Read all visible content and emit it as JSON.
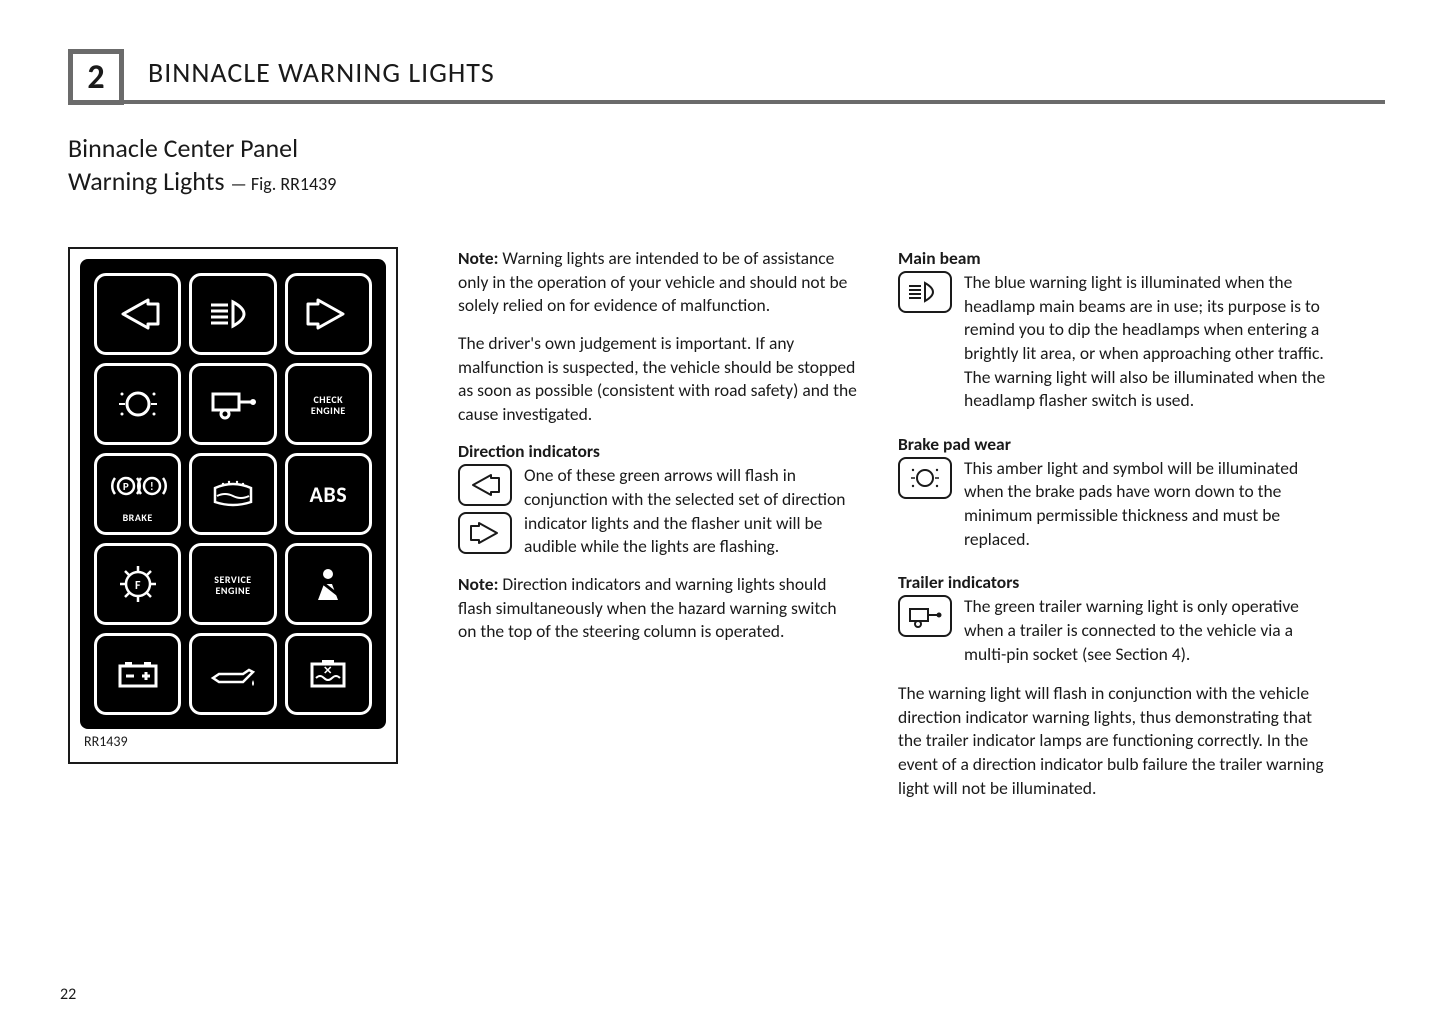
{
  "header": {
    "section_number": "2",
    "title": "BINNACLE WARNING LIGHTS"
  },
  "subtitle": {
    "line1": "Binnacle Center Panel",
    "line2": "Warning Lights",
    "fig_ref": "— Fig. RR1439"
  },
  "figure": {
    "label": "RR1439",
    "cells": {
      "check_engine": "CHECK ENGINE",
      "brake": "BRAKE",
      "abs": "ABS",
      "service_engine": "SERVICE ENGINE"
    }
  },
  "mid": {
    "note1_label": "Note:",
    "note1": " Warning lights are intended to be of assistance only in the operation of your vehicle and should not be solely relied on for evidence of malfunction.",
    "para2": "The driver's own judgement is important. If any malfunction is suspected, the vehicle should be stopped as soon as possible (consistent with road safety) and the cause investigated.",
    "dir_heading": "Direction indicators",
    "dir_body": "One of these green arrows will flash in conjunction with the selected set of direction indicator lights and the flasher unit will be audible while the lights are flashing.",
    "note2_label": "Note:",
    "note2": " Direction indicators and warning lights should flash simultaneously when the hazard warning switch on the top of the steering column is operated."
  },
  "right": {
    "main_heading": "Main beam",
    "main_body": "The blue warning light is illuminated when the headlamp main beams are in use; its purpose is to remind you to dip the headlamps when entering a brightly lit area, or when approaching other traffic. The warning light will also be illuminated when the headlamp flasher switch is used.",
    "brake_heading": "Brake pad wear",
    "brake_body": "This amber light and symbol will be illuminated when the brake pads have worn down to the minimum permissible thickness and must be replaced.",
    "trailer_heading": "Trailer indicators",
    "trailer_body1": "The green trailer warning light is only operative when a trailer is connected to the vehicle via a multi-pin socket (see Section 4).",
    "trailer_body2": "The warning light will flash in conjunction with the vehicle direction indicator warning lights, thus demonstrating that the trailer indicator lamps are functioning correctly. In the event of a direction indicator bulb failure the trailer warning light will not be illuminated."
  },
  "page_number": "22"
}
